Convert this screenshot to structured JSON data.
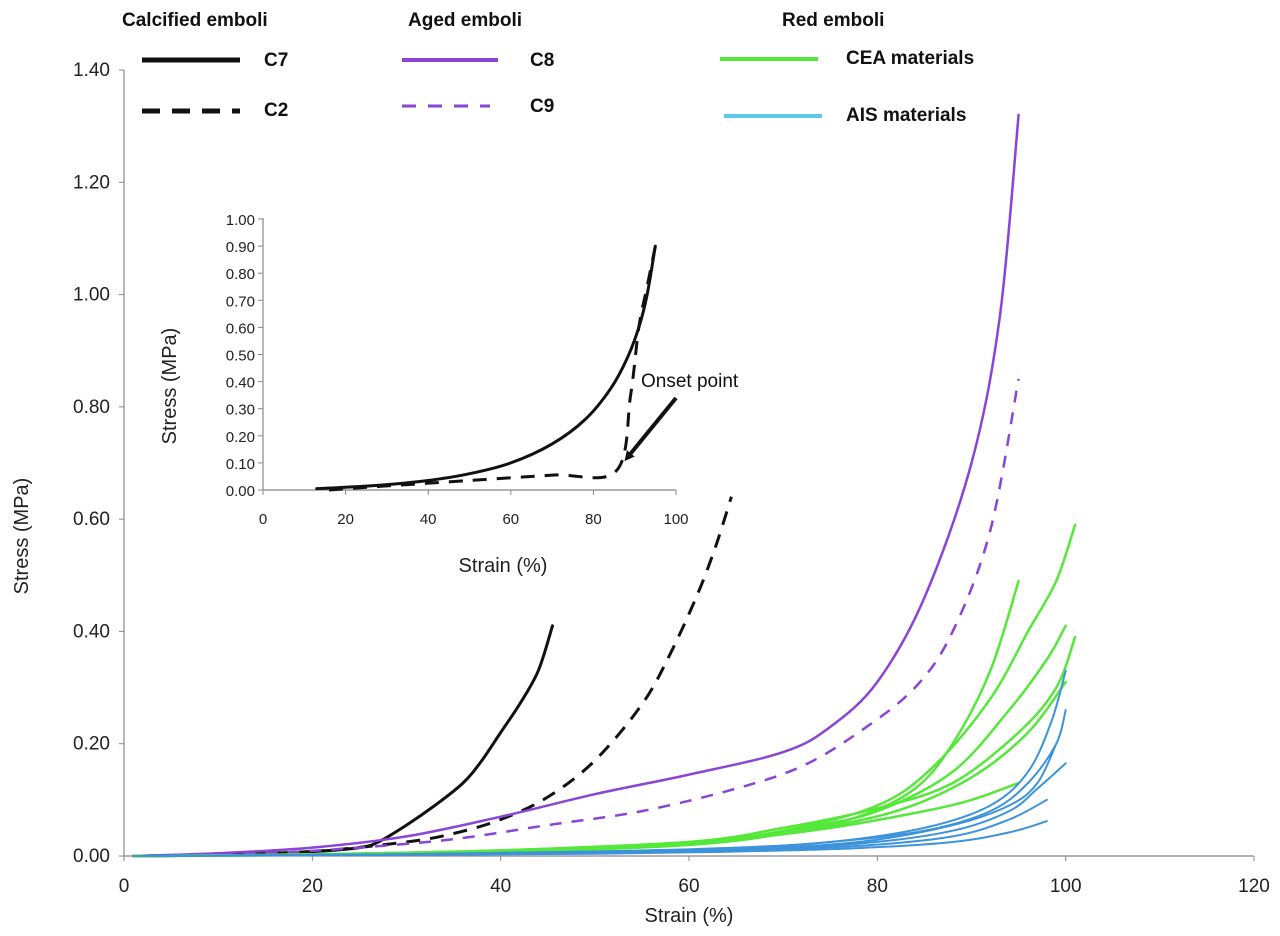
{
  "chart_data": {
    "type": "line",
    "xlabel": "Strain  (%)",
    "ylabel": "Stress (MPa)",
    "xlim": [
      0,
      120
    ],
    "ylim": [
      0,
      1.4
    ],
    "x_ticks": [
      "0",
      "20",
      "40",
      "60",
      "80",
      "100",
      "120"
    ],
    "y_ticks": [
      "0.00",
      "0.20",
      "0.40",
      "0.60",
      "0.80",
      "1.00",
      "1.20",
      "1.40"
    ],
    "grid": false,
    "legend": {
      "placement": "top",
      "groups": [
        {
          "title": "Calcified emboli",
          "entries": [
            {
              "label": "C7",
              "color": "#111111",
              "dash": "solid"
            },
            {
              "label": "C2",
              "color": "#111111",
              "dash": "dashed"
            }
          ]
        },
        {
          "title": "Aged emboli",
          "entries": [
            {
              "label": "C8",
              "color": "#8a44d6",
              "dash": "solid"
            },
            {
              "label": "C9",
              "color": "#8a44d6",
              "dash": "dashed"
            }
          ]
        },
        {
          "title": "Red emboli",
          "entries": [
            {
              "label": "CEA materials",
              "color": "#55e83a",
              "dash": "solid"
            },
            {
              "label": "AIS materials",
              "color": "#5fc8ea",
              "dash": "solid"
            }
          ]
        }
      ]
    },
    "series": [
      {
        "name": "C7",
        "color": "#111111",
        "dash": "solid",
        "width": 3,
        "points": [
          [
            1,
            0
          ],
          [
            10,
            0.002
          ],
          [
            20,
            0.008
          ],
          [
            25,
            0.015
          ],
          [
            27,
            0.025
          ],
          [
            30,
            0.055
          ],
          [
            33,
            0.09
          ],
          [
            36,
            0.13
          ],
          [
            38,
            0.17
          ],
          [
            40,
            0.22
          ],
          [
            42,
            0.27
          ],
          [
            44,
            0.33
          ],
          [
            45.5,
            0.41
          ]
        ]
      },
      {
        "name": "C2",
        "color": "#111111",
        "dash": "dashed",
        "width": 3,
        "points": [
          [
            2,
            0
          ],
          [
            10,
            0.003
          ],
          [
            20,
            0.008
          ],
          [
            30,
            0.025
          ],
          [
            35,
            0.04
          ],
          [
            40,
            0.065
          ],
          [
            45,
            0.105
          ],
          [
            50,
            0.17
          ],
          [
            55,
            0.27
          ],
          [
            58,
            0.36
          ],
          [
            61,
            0.47
          ],
          [
            63,
            0.56
          ],
          [
            64.5,
            0.64
          ]
        ]
      },
      {
        "name": "C8",
        "color": "#8a44d6",
        "dash": "solid",
        "width": 2.5,
        "points": [
          [
            1,
            0
          ],
          [
            10,
            0.005
          ],
          [
            20,
            0.015
          ],
          [
            30,
            0.035
          ],
          [
            40,
            0.07
          ],
          [
            50,
            0.11
          ],
          [
            60,
            0.145
          ],
          [
            70,
            0.185
          ],
          [
            75,
            0.23
          ],
          [
            80,
            0.31
          ],
          [
            85,
            0.46
          ],
          [
            90,
            0.7
          ],
          [
            93,
            0.96
          ],
          [
            95,
            1.32
          ]
        ]
      },
      {
        "name": "C9",
        "color": "#8a44d6",
        "dash": "dashed",
        "width": 2.5,
        "points": [
          [
            1,
            0
          ],
          [
            15,
            0.005
          ],
          [
            25,
            0.015
          ],
          [
            35,
            0.03
          ],
          [
            45,
            0.055
          ],
          [
            55,
            0.08
          ],
          [
            65,
            0.12
          ],
          [
            72,
            0.16
          ],
          [
            78,
            0.22
          ],
          [
            84,
            0.3
          ],
          [
            88,
            0.4
          ],
          [
            92,
            0.58
          ],
          [
            95,
            0.85
          ]
        ]
      },
      {
        "name": "CEA 1",
        "color": "#55e83a",
        "dash": "solid",
        "width": 2.5,
        "points": [
          [
            1,
            0
          ],
          [
            20,
            0.002
          ],
          [
            40,
            0.008
          ],
          [
            60,
            0.02
          ],
          [
            70,
            0.04
          ],
          [
            78,
            0.07
          ],
          [
            84,
            0.12
          ],
          [
            88,
            0.2
          ],
          [
            92,
            0.33
          ],
          [
            95,
            0.49
          ]
        ]
      },
      {
        "name": "CEA 2",
        "color": "#55e83a",
        "dash": "solid",
        "width": 2.5,
        "points": [
          [
            1,
            0
          ],
          [
            20,
            0.003
          ],
          [
            40,
            0.01
          ],
          [
            60,
            0.025
          ],
          [
            70,
            0.045
          ],
          [
            80,
            0.09
          ],
          [
            86,
            0.16
          ],
          [
            92,
            0.28
          ],
          [
            96,
            0.4
          ],
          [
            99,
            0.49
          ],
          [
            101,
            0.59
          ]
        ]
      },
      {
        "name": "CEA 3",
        "color": "#55e83a",
        "dash": "solid",
        "width": 2.5,
        "points": [
          [
            1,
            0
          ],
          [
            20,
            0.002
          ],
          [
            40,
            0.008
          ],
          [
            60,
            0.02
          ],
          [
            72,
            0.05
          ],
          [
            80,
            0.08
          ],
          [
            88,
            0.15
          ],
          [
            94,
            0.26
          ],
          [
            98,
            0.35
          ],
          [
            100,
            0.41
          ]
        ]
      },
      {
        "name": "CEA 4",
        "color": "#55e83a",
        "dash": "solid",
        "width": 2.5,
        "points": [
          [
            1,
            0
          ],
          [
            20,
            0.003
          ],
          [
            40,
            0.01
          ],
          [
            60,
            0.025
          ],
          [
            70,
            0.05
          ],
          [
            80,
            0.085
          ],
          [
            88,
            0.13
          ],
          [
            95,
            0.22
          ],
          [
            99,
            0.3
          ],
          [
            101,
            0.39
          ]
        ]
      },
      {
        "name": "CEA 5",
        "color": "#55e83a",
        "dash": "solid",
        "width": 2.5,
        "points": [
          [
            1,
            0
          ],
          [
            20,
            0.002
          ],
          [
            40,
            0.007
          ],
          [
            60,
            0.02
          ],
          [
            72,
            0.045
          ],
          [
            82,
            0.08
          ],
          [
            90,
            0.14
          ],
          [
            96,
            0.22
          ],
          [
            100,
            0.31
          ]
        ]
      },
      {
        "name": "CEA 6",
        "color": "#55e83a",
        "dash": "solid",
        "width": 2.5,
        "points": [
          [
            1,
            0
          ],
          [
            30,
            0.004
          ],
          [
            50,
            0.012
          ],
          [
            65,
            0.03
          ],
          [
            75,
            0.05
          ],
          [
            85,
            0.08
          ],
          [
            90,
            0.1
          ],
          [
            95,
            0.13
          ]
        ]
      },
      {
        "name": "AIS 1",
        "color": "#3c93dc",
        "dash": "solid",
        "width": 2,
        "points": [
          [
            1,
            0
          ],
          [
            30,
            0.003
          ],
          [
            50,
            0.008
          ],
          [
            65,
            0.015
          ],
          [
            75,
            0.025
          ],
          [
            85,
            0.05
          ],
          [
            92,
            0.09
          ],
          [
            96,
            0.15
          ],
          [
            98.5,
            0.24
          ],
          [
            100,
            0.33
          ]
        ]
      },
      {
        "name": "AIS 2",
        "color": "#3c93dc",
        "dash": "solid",
        "width": 2,
        "points": [
          [
            1,
            0
          ],
          [
            30,
            0.003
          ],
          [
            50,
            0.008
          ],
          [
            65,
            0.014
          ],
          [
            75,
            0.025
          ],
          [
            85,
            0.045
          ],
          [
            92,
            0.08
          ],
          [
            96,
            0.13
          ],
          [
            99,
            0.2
          ],
          [
            100,
            0.26
          ]
        ]
      },
      {
        "name": "AIS 3",
        "color": "#3c93dc",
        "dash": "solid",
        "width": 2,
        "points": [
          [
            1,
            0
          ],
          [
            30,
            0.003
          ],
          [
            50,
            0.007
          ],
          [
            65,
            0.012
          ],
          [
            78,
            0.025
          ],
          [
            88,
            0.055
          ],
          [
            94,
            0.09
          ],
          [
            97,
            0.13
          ],
          [
            99,
            0.2
          ]
        ]
      },
      {
        "name": "AIS 4",
        "color": "#3c93dc",
        "dash": "solid",
        "width": 2,
        "points": [
          [
            1,
            0
          ],
          [
            30,
            0.003
          ],
          [
            50,
            0.006
          ],
          [
            65,
            0.012
          ],
          [
            78,
            0.022
          ],
          [
            88,
            0.045
          ],
          [
            94,
            0.08
          ],
          [
            97,
            0.12
          ],
          [
            100,
            0.165
          ]
        ]
      },
      {
        "name": "AIS 5",
        "color": "#3c93dc",
        "dash": "solid",
        "width": 2,
        "points": [
          [
            1,
            0
          ],
          [
            30,
            0.003
          ],
          [
            50,
            0.005
          ],
          [
            65,
            0.01
          ],
          [
            78,
            0.018
          ],
          [
            88,
            0.035
          ],
          [
            94,
            0.065
          ],
          [
            98,
            0.1
          ]
        ]
      },
      {
        "name": "AIS 6",
        "color": "#3c93dc",
        "dash": "solid",
        "width": 2,
        "points": [
          [
            1,
            0
          ],
          [
            30,
            0.002
          ],
          [
            50,
            0.004
          ],
          [
            65,
            0.008
          ],
          [
            78,
            0.014
          ],
          [
            88,
            0.025
          ],
          [
            94,
            0.042
          ],
          [
            98,
            0.062
          ]
        ]
      }
    ],
    "inset": {
      "xlabel": "Strain  (%)",
      "ylabel": "Stress (MPa)",
      "xlim": [
        0,
        100
      ],
      "ylim": [
        0,
        1.0
      ],
      "x_ticks": [
        "0",
        "20",
        "40",
        "60",
        "80",
        "100"
      ],
      "y_ticks": [
        "0.00",
        "0.10",
        "0.20",
        "0.30",
        "0.40",
        "0.50",
        "0.60",
        "0.70",
        "0.80",
        "0.90",
        "1.00"
      ],
      "series": [
        {
          "name": "solid curve",
          "color": "#111111",
          "dash": "solid",
          "width": 3,
          "points": [
            [
              13,
              0.005
            ],
            [
              20,
              0.01
            ],
            [
              30,
              0.02
            ],
            [
              40,
              0.035
            ],
            [
              50,
              0.06
            ],
            [
              60,
              0.1
            ],
            [
              70,
              0.17
            ],
            [
              78,
              0.26
            ],
            [
              84,
              0.37
            ],
            [
              88,
              0.48
            ],
            [
              91,
              0.6
            ],
            [
              93,
              0.72
            ],
            [
              95,
              0.9
            ]
          ]
        },
        {
          "name": "dashed curve",
          "color": "#111111",
          "dash": "dashed",
          "width": 3,
          "points": [
            [
              16,
              0
            ],
            [
              30,
              0.015
            ],
            [
              50,
              0.035
            ],
            [
              70,
              0.055
            ],
            [
              85.5,
              0.07
            ],
            [
              89,
              0.35
            ],
            [
              91,
              0.6
            ],
            [
              93,
              0.75
            ],
            [
              95,
              0.9
            ]
          ]
        }
      ],
      "annotation": {
        "text": "Onset point",
        "point": [
          86,
          0.07
        ]
      }
    }
  }
}
